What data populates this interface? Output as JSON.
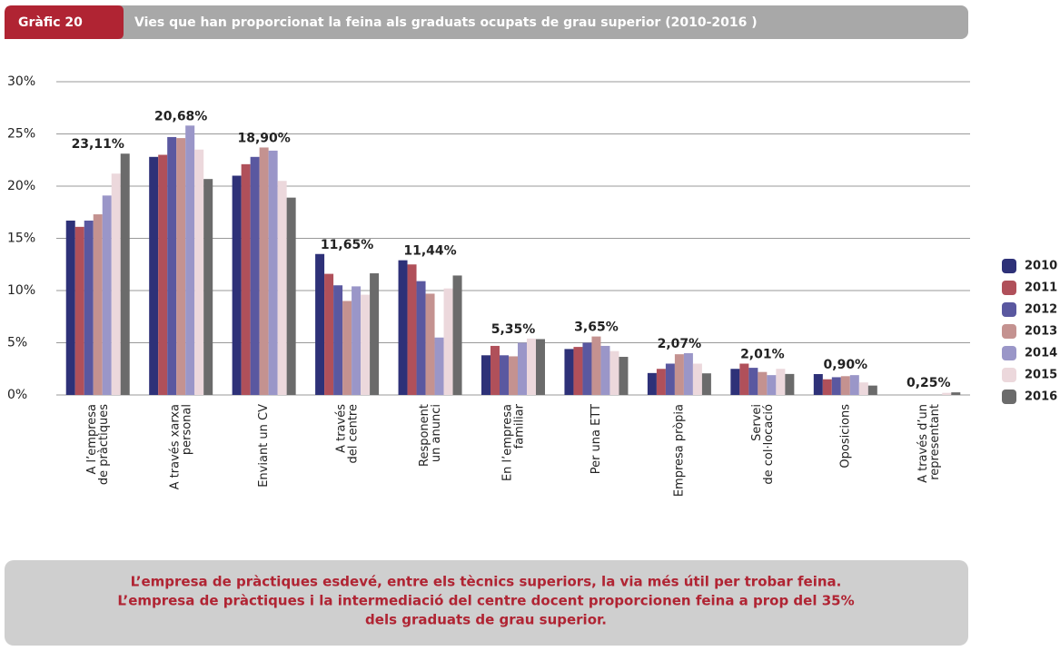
{
  "chart_data": {
    "type": "bar",
    "chart_label": "Gràfic 20",
    "title": "Vies que han proporcionat la feina als graduats ocupats de grau superior (2010-2016 )",
    "categories": [
      "A l’empresa\nde pràctiques",
      "A través xarxa\npersonal",
      "Enviant un CV",
      "A través\ndel centre",
      "Responent\nun anunci",
      "En l’empresa\nfamiliar",
      "Per una ETT",
      "Empresa pròpia",
      "Servei\nde col·locació",
      "Oposicions",
      "A través d’un\nrepresentant"
    ],
    "series": [
      {
        "name": "2010",
        "color": "#2e3178",
        "values": [
          16.7,
          22.8,
          21.0,
          13.5,
          12.9,
          3.8,
          4.4,
          2.1,
          2.5,
          2.0,
          null
        ]
      },
      {
        "name": "2011",
        "color": "#b0505a",
        "values": [
          16.1,
          23.0,
          22.1,
          11.6,
          12.5,
          4.7,
          4.6,
          2.5,
          3.0,
          1.5,
          null
        ]
      },
      {
        "name": "2012",
        "color": "#5a58a0",
        "values": [
          16.7,
          24.7,
          22.8,
          10.5,
          10.9,
          3.8,
          5.0,
          3.0,
          2.6,
          1.7,
          null
        ]
      },
      {
        "name": "2013",
        "color": "#c49290",
        "values": [
          17.3,
          24.6,
          23.7,
          9.0,
          9.7,
          3.7,
          5.6,
          3.9,
          2.2,
          1.8,
          null
        ]
      },
      {
        "name": "2014",
        "color": "#9a96c8",
        "values": [
          19.1,
          25.8,
          23.4,
          10.4,
          5.5,
          5.0,
          4.7,
          4.0,
          1.9,
          1.9,
          null
        ]
      },
      {
        "name": "2015",
        "color": "#ecd8dc",
        "values": [
          21.2,
          23.5,
          20.5,
          9.6,
          10.2,
          5.4,
          4.2,
          3.0,
          2.5,
          1.2,
          0.2
        ]
      },
      {
        "name": "2016",
        "color": "#6b6b6b",
        "values": [
          23.11,
          20.68,
          18.9,
          11.65,
          11.44,
          5.35,
          3.65,
          2.07,
          2.01,
          0.9,
          0.25
        ],
        "value_labels": [
          "23,11%",
          "20,68%",
          "18,90%",
          "11,65%",
          "11,44%",
          "5,35%",
          "3,65%",
          "2,07%",
          "2,01%",
          "0,90%",
          "0,25%"
        ]
      }
    ],
    "ylim": [
      0,
      30
    ],
    "yticks": [
      {
        "value": 0,
        "label": "0%"
      },
      {
        "value": 5,
        "label": "5%"
      },
      {
        "value": 10,
        "label": "10%"
      },
      {
        "value": 15,
        "label": "15%"
      },
      {
        "value": 20,
        "label": "20%"
      },
      {
        "value": 25,
        "label": "25%"
      },
      {
        "value": 30,
        "label": "30%"
      }
    ],
    "grid": true,
    "legend": "right",
    "footnote": [
      "L’empresa de pràctiques esdevé, entre els tècnics superiors, la via més útil per trobar feina.",
      "L’empresa de pràctiques i la intermediació del centre docent proporcionen feina a prop del 35%",
      "dels graduats de grau superior."
    ]
  }
}
